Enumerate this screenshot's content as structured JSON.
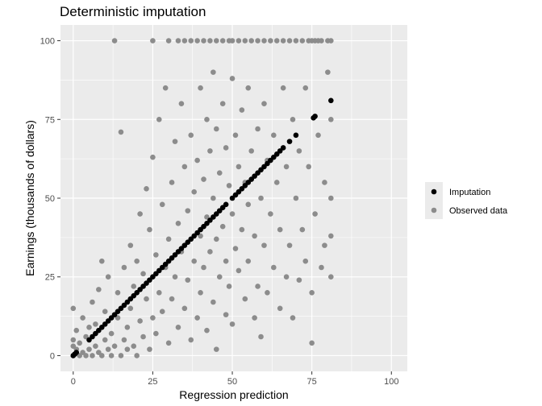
{
  "chart_data": {
    "type": "scatter",
    "title": "Deterministic imputation",
    "xlabel": "Regression prediction",
    "ylabel": "Earnings (thousands of dollars)",
    "xlim": [
      -4,
      105
    ],
    "ylim": [
      -5,
      105
    ],
    "x_ticks": [
      0,
      25,
      50,
      75,
      100
    ],
    "y_ticks": [
      0,
      25,
      50,
      75,
      100
    ],
    "grid": true,
    "legend_position": "right",
    "series": [
      {
        "name": "Imputation",
        "color": "#000000",
        "points": [
          [
            0,
            0
          ],
          [
            0.5,
            0.5
          ],
          [
            1,
            1
          ],
          [
            5,
            5
          ],
          [
            6,
            6
          ],
          [
            7,
            7
          ],
          [
            8,
            8
          ],
          [
            9,
            9
          ],
          [
            10,
            10
          ],
          [
            11,
            11
          ],
          [
            12,
            12
          ],
          [
            13,
            13
          ],
          [
            14,
            14
          ],
          [
            15,
            15
          ],
          [
            16,
            16
          ],
          [
            17,
            17
          ],
          [
            18,
            18
          ],
          [
            19,
            19
          ],
          [
            20,
            20
          ],
          [
            21,
            21
          ],
          [
            22,
            22
          ],
          [
            23,
            23
          ],
          [
            24,
            24
          ],
          [
            25,
            25
          ],
          [
            26,
            26
          ],
          [
            27,
            27
          ],
          [
            28,
            28
          ],
          [
            29,
            29
          ],
          [
            30,
            30
          ],
          [
            31,
            31
          ],
          [
            32,
            32
          ],
          [
            33,
            33
          ],
          [
            34,
            34
          ],
          [
            35,
            35
          ],
          [
            36,
            36
          ],
          [
            37,
            37
          ],
          [
            38,
            38
          ],
          [
            39,
            39
          ],
          [
            40,
            40
          ],
          [
            41,
            41
          ],
          [
            42,
            42
          ],
          [
            43,
            43
          ],
          [
            44,
            44
          ],
          [
            45,
            45
          ],
          [
            46,
            46
          ],
          [
            47,
            47
          ],
          [
            48,
            48
          ],
          [
            50,
            50
          ],
          [
            51,
            51
          ],
          [
            52,
            52
          ],
          [
            53,
            53
          ],
          [
            54,
            54
          ],
          [
            55,
            55
          ],
          [
            56,
            56
          ],
          [
            57,
            57
          ],
          [
            58,
            58
          ],
          [
            59,
            59
          ],
          [
            60,
            60
          ],
          [
            61,
            61
          ],
          [
            62,
            62
          ],
          [
            63,
            63
          ],
          [
            64,
            64
          ],
          [
            65,
            65
          ],
          [
            66,
            66
          ],
          [
            68,
            68
          ],
          [
            70,
            70
          ],
          [
            75.5,
            75.5
          ],
          [
            76,
            76
          ],
          [
            81,
            81
          ]
        ]
      },
      {
        "name": "Observed data",
        "color": "#8c8c8c",
        "points": [
          [
            0,
            0
          ],
          [
            0,
            3
          ],
          [
            0,
            5
          ],
          [
            0,
            15
          ],
          [
            1,
            2
          ],
          [
            1,
            8
          ],
          [
            2,
            0
          ],
          [
            2,
            4
          ],
          [
            3,
            1
          ],
          [
            3,
            12
          ],
          [
            4,
            0
          ],
          [
            4,
            6
          ],
          [
            5,
            2
          ],
          [
            5,
            9
          ],
          [
            6,
            0
          ],
          [
            6,
            17
          ],
          [
            7,
            3
          ],
          [
            7,
            10
          ],
          [
            8,
            1
          ],
          [
            8,
            21
          ],
          [
            9,
            0
          ],
          [
            9,
            30
          ],
          [
            10,
            5
          ],
          [
            10,
            14
          ],
          [
            11,
            2
          ],
          [
            11,
            25
          ],
          [
            12,
            0
          ],
          [
            12,
            7
          ],
          [
            13,
            100
          ],
          [
            13,
            3
          ],
          [
            14,
            12
          ],
          [
            14,
            20
          ],
          [
            15,
            0
          ],
          [
            15,
            71
          ],
          [
            16,
            5
          ],
          [
            16,
            28
          ],
          [
            17,
            9
          ],
          [
            17,
            2
          ],
          [
            18,
            35
          ],
          [
            18,
            15
          ],
          [
            19,
            3
          ],
          [
            19,
            22
          ],
          [
            20,
            0
          ],
          [
            20,
            30
          ],
          [
            21,
            11
          ],
          [
            21,
            45
          ],
          [
            22,
            6
          ],
          [
            22,
            26
          ],
          [
            23,
            53
          ],
          [
            23,
            18
          ],
          [
            24,
            2
          ],
          [
            24,
            40
          ],
          [
            25,
            100
          ],
          [
            25,
            63
          ],
          [
            25,
            12
          ],
          [
            26,
            32
          ],
          [
            26,
            7
          ],
          [
            27,
            75
          ],
          [
            27,
            20
          ],
          [
            28,
            48
          ],
          [
            28,
            14
          ],
          [
            29,
            85
          ],
          [
            29,
            28
          ],
          [
            30,
            100
          ],
          [
            30,
            37
          ],
          [
            30,
            4
          ],
          [
            31,
            55
          ],
          [
            31,
            18
          ],
          [
            32,
            68
          ],
          [
            32,
            25
          ],
          [
            33,
            100
          ],
          [
            33,
            42
          ],
          [
            33,
            9
          ],
          [
            34,
            80
          ],
          [
            34,
            33
          ],
          [
            35,
            100
          ],
          [
            35,
            60
          ],
          [
            35,
            15
          ],
          [
            36,
            46
          ],
          [
            36,
            24
          ],
          [
            37,
            100
          ],
          [
            37,
            70
          ],
          [
            37,
            5
          ],
          [
            38,
            52
          ],
          [
            38,
            30
          ],
          [
            39,
            100
          ],
          [
            39,
            62
          ],
          [
            39,
            12
          ],
          [
            40,
            85
          ],
          [
            40,
            38
          ],
          [
            40,
            20
          ],
          [
            41,
            100
          ],
          [
            41,
            56
          ],
          [
            41,
            28
          ],
          [
            42,
            75
          ],
          [
            42,
            44
          ],
          [
            42,
            8
          ],
          [
            43,
            100
          ],
          [
            43,
            65
          ],
          [
            43,
            33
          ],
          [
            44,
            90
          ],
          [
            44,
            50
          ],
          [
            44,
            17
          ],
          [
            45,
            100
          ],
          [
            45,
            72
          ],
          [
            45,
            37
          ],
          [
            45,
            2
          ],
          [
            46,
            58
          ],
          [
            46,
            25
          ],
          [
            47,
            100
          ],
          [
            47,
            80
          ],
          [
            47,
            41
          ],
          [
            48,
            66
          ],
          [
            48,
            30
          ],
          [
            48,
            13
          ],
          [
            49,
            100
          ],
          [
            49,
            54
          ],
          [
            49,
            22
          ],
          [
            50,
            100
          ],
          [
            50,
            88
          ],
          [
            50,
            45
          ],
          [
            50,
            10
          ],
          [
            51,
            70
          ],
          [
            51,
            34
          ],
          [
            52,
            100
          ],
          [
            52,
            60
          ],
          [
            52,
            27
          ],
          [
            53,
            78
          ],
          [
            53,
            40
          ],
          [
            54,
            100
          ],
          [
            54,
            55
          ],
          [
            54,
            18
          ],
          [
            55,
            85
          ],
          [
            55,
            48
          ],
          [
            55,
            30
          ],
          [
            56,
            100
          ],
          [
            56,
            65
          ],
          [
            57,
            38
          ],
          [
            57,
            12
          ],
          [
            58,
            100
          ],
          [
            58,
            72
          ],
          [
            58,
            22
          ],
          [
            59,
            50
          ],
          [
            59,
            6
          ],
          [
            60,
            100
          ],
          [
            60,
            80
          ],
          [
            60,
            35
          ],
          [
            61,
            62
          ],
          [
            61,
            20
          ],
          [
            62,
            100
          ],
          [
            62,
            45
          ],
          [
            63,
            70
          ],
          [
            63,
            28
          ],
          [
            64,
            100
          ],
          [
            64,
            55
          ],
          [
            65,
            15
          ],
          [
            65,
            40
          ],
          [
            66,
            100
          ],
          [
            66,
            85
          ],
          [
            67,
            60
          ],
          [
            67,
            25
          ],
          [
            68,
            100
          ],
          [
            68,
            35
          ],
          [
            69,
            75
          ],
          [
            69,
            12
          ],
          [
            70,
            100
          ],
          [
            70,
            50
          ],
          [
            71,
            24
          ],
          [
            71,
            65
          ],
          [
            72,
            100
          ],
          [
            72,
            40
          ],
          [
            73,
            85
          ],
          [
            73,
            30
          ],
          [
            74,
            100
          ],
          [
            74,
            60
          ],
          [
            75,
            100
          ],
          [
            75,
            20
          ],
          [
            75,
            4
          ],
          [
            76,
            100
          ],
          [
            76,
            45
          ],
          [
            77,
            100
          ],
          [
            77,
            70
          ],
          [
            78,
            100
          ],
          [
            78,
            28
          ],
          [
            79,
            55
          ],
          [
            79,
            35
          ],
          [
            80,
            100
          ],
          [
            80,
            90
          ],
          [
            81,
            100
          ],
          [
            81,
            75
          ],
          [
            81,
            50
          ],
          [
            81,
            38
          ],
          [
            81,
            25
          ]
        ]
      }
    ]
  }
}
